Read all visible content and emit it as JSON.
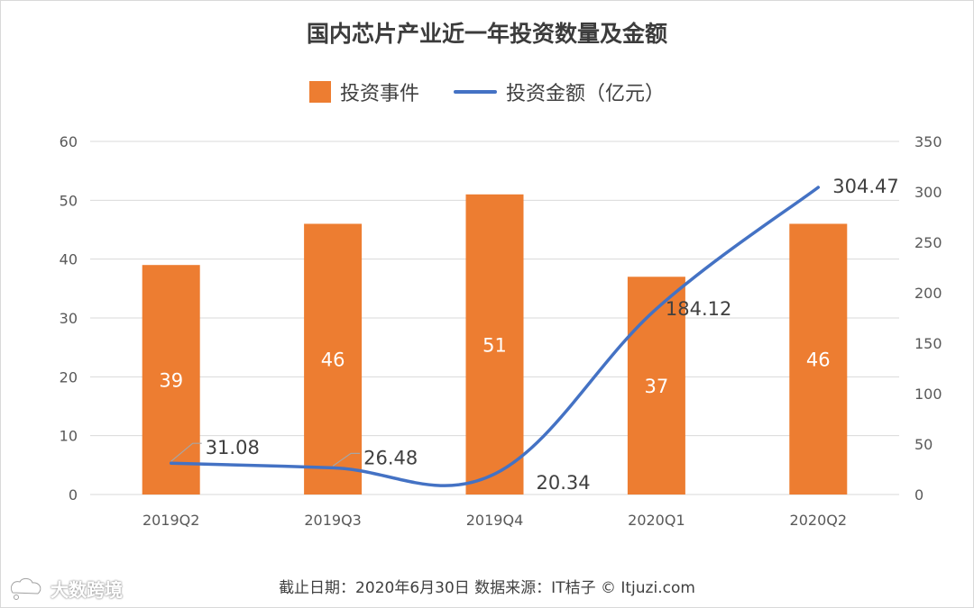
{
  "chart_data": {
    "type": "bar",
    "title": "国内芯片产业近一年投资数量及金额",
    "categories": [
      "2019Q2",
      "2019Q3",
      "2019Q4",
      "2020Q1",
      "2020Q2"
    ],
    "series": [
      {
        "name": "投资事件",
        "type": "bar",
        "axis": "left",
        "color": "#ED7D31",
        "values": [
          39,
          46,
          51,
          37,
          46
        ],
        "labels": [
          "39",
          "46",
          "51",
          "37",
          "46"
        ]
      },
      {
        "name": "投资金额（亿元）",
        "type": "line",
        "axis": "right",
        "color": "#4472C4",
        "values": [
          31.08,
          26.48,
          20.34,
          184.12,
          304.47
        ],
        "labels": [
          "31.08",
          "26.48",
          "20.34",
          "184.12",
          "304.47"
        ]
      }
    ],
    "y_left": {
      "ylim": [
        0,
        60
      ],
      "ticks": [
        "0",
        "10",
        "20",
        "30",
        "40",
        "50",
        "60"
      ]
    },
    "y_right": {
      "ylim": [
        0,
        350
      ],
      "ticks": [
        "0",
        "50",
        "100",
        "150",
        "200",
        "250",
        "300",
        "350"
      ]
    },
    "grid": true,
    "legend_position": "top-center"
  },
  "footer": {
    "text": "截止日期：2020年6月30日    数据来源：IT桔子 © Itjuzi.com"
  },
  "watermark": {
    "text": "大数跨境"
  }
}
